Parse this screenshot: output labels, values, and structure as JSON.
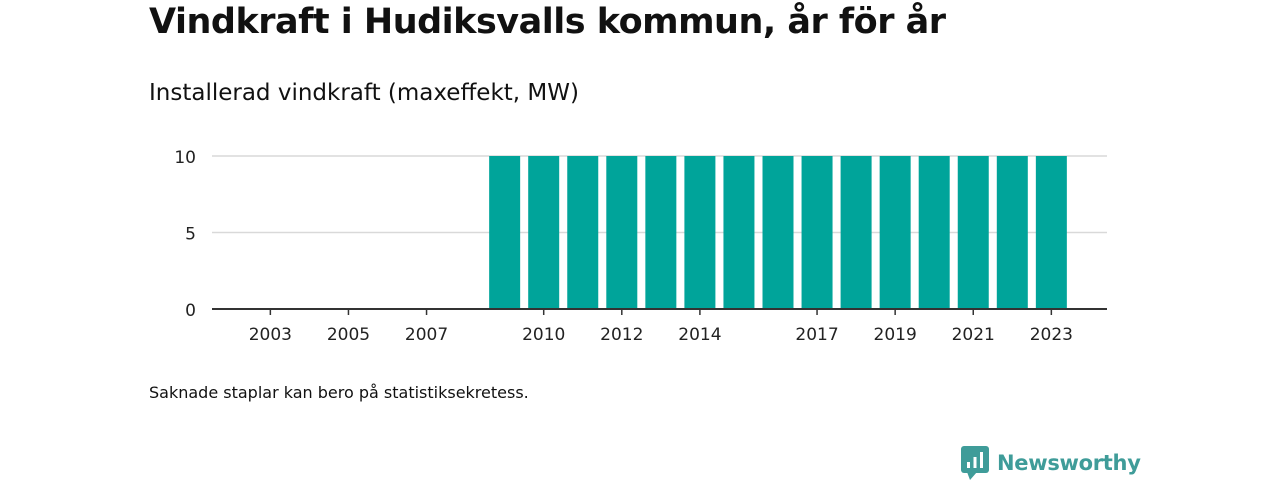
{
  "title": "Vindkraft i Hudiksvalls kommun, år för år",
  "subtitle": "Installerad vindkraft (maxeffekt, MW)",
  "note": "Saknade staplar kan bero på statistiksekretess.",
  "brand": {
    "name": "Newsworthy",
    "icon": "newsworthy-logo-icon",
    "color": "#3f9c99"
  },
  "colors": {
    "bar": "#00a49a",
    "grid": "#d9d9d9",
    "axis": "#333333"
  },
  "chart_data": {
    "type": "bar",
    "title": "Installerad vindkraft (maxeffekt, MW)",
    "categories": [
      "2002",
      "2003",
      "2004",
      "2005",
      "2006",
      "2007",
      "2008",
      "2009",
      "2010",
      "2011",
      "2012",
      "2013",
      "2014",
      "2015",
      "2016",
      "2017",
      "2018",
      "2019",
      "2020",
      "2021",
      "2022",
      "2023"
    ],
    "values": [
      0,
      0,
      0,
      0,
      0,
      0,
      0,
      10,
      10,
      10,
      10,
      10,
      10,
      10,
      10,
      10,
      10,
      10,
      10,
      10,
      10,
      10
    ],
    "x_tick_labels": [
      "2003",
      "2005",
      "2007",
      "2010",
      "2012",
      "2014",
      "2017",
      "2019",
      "2021",
      "2023"
    ],
    "y_ticks": [
      0,
      5,
      10
    ],
    "ylim": [
      0,
      10
    ],
    "xlabel": "",
    "ylabel": "",
    "grid": true,
    "legend": "none"
  }
}
